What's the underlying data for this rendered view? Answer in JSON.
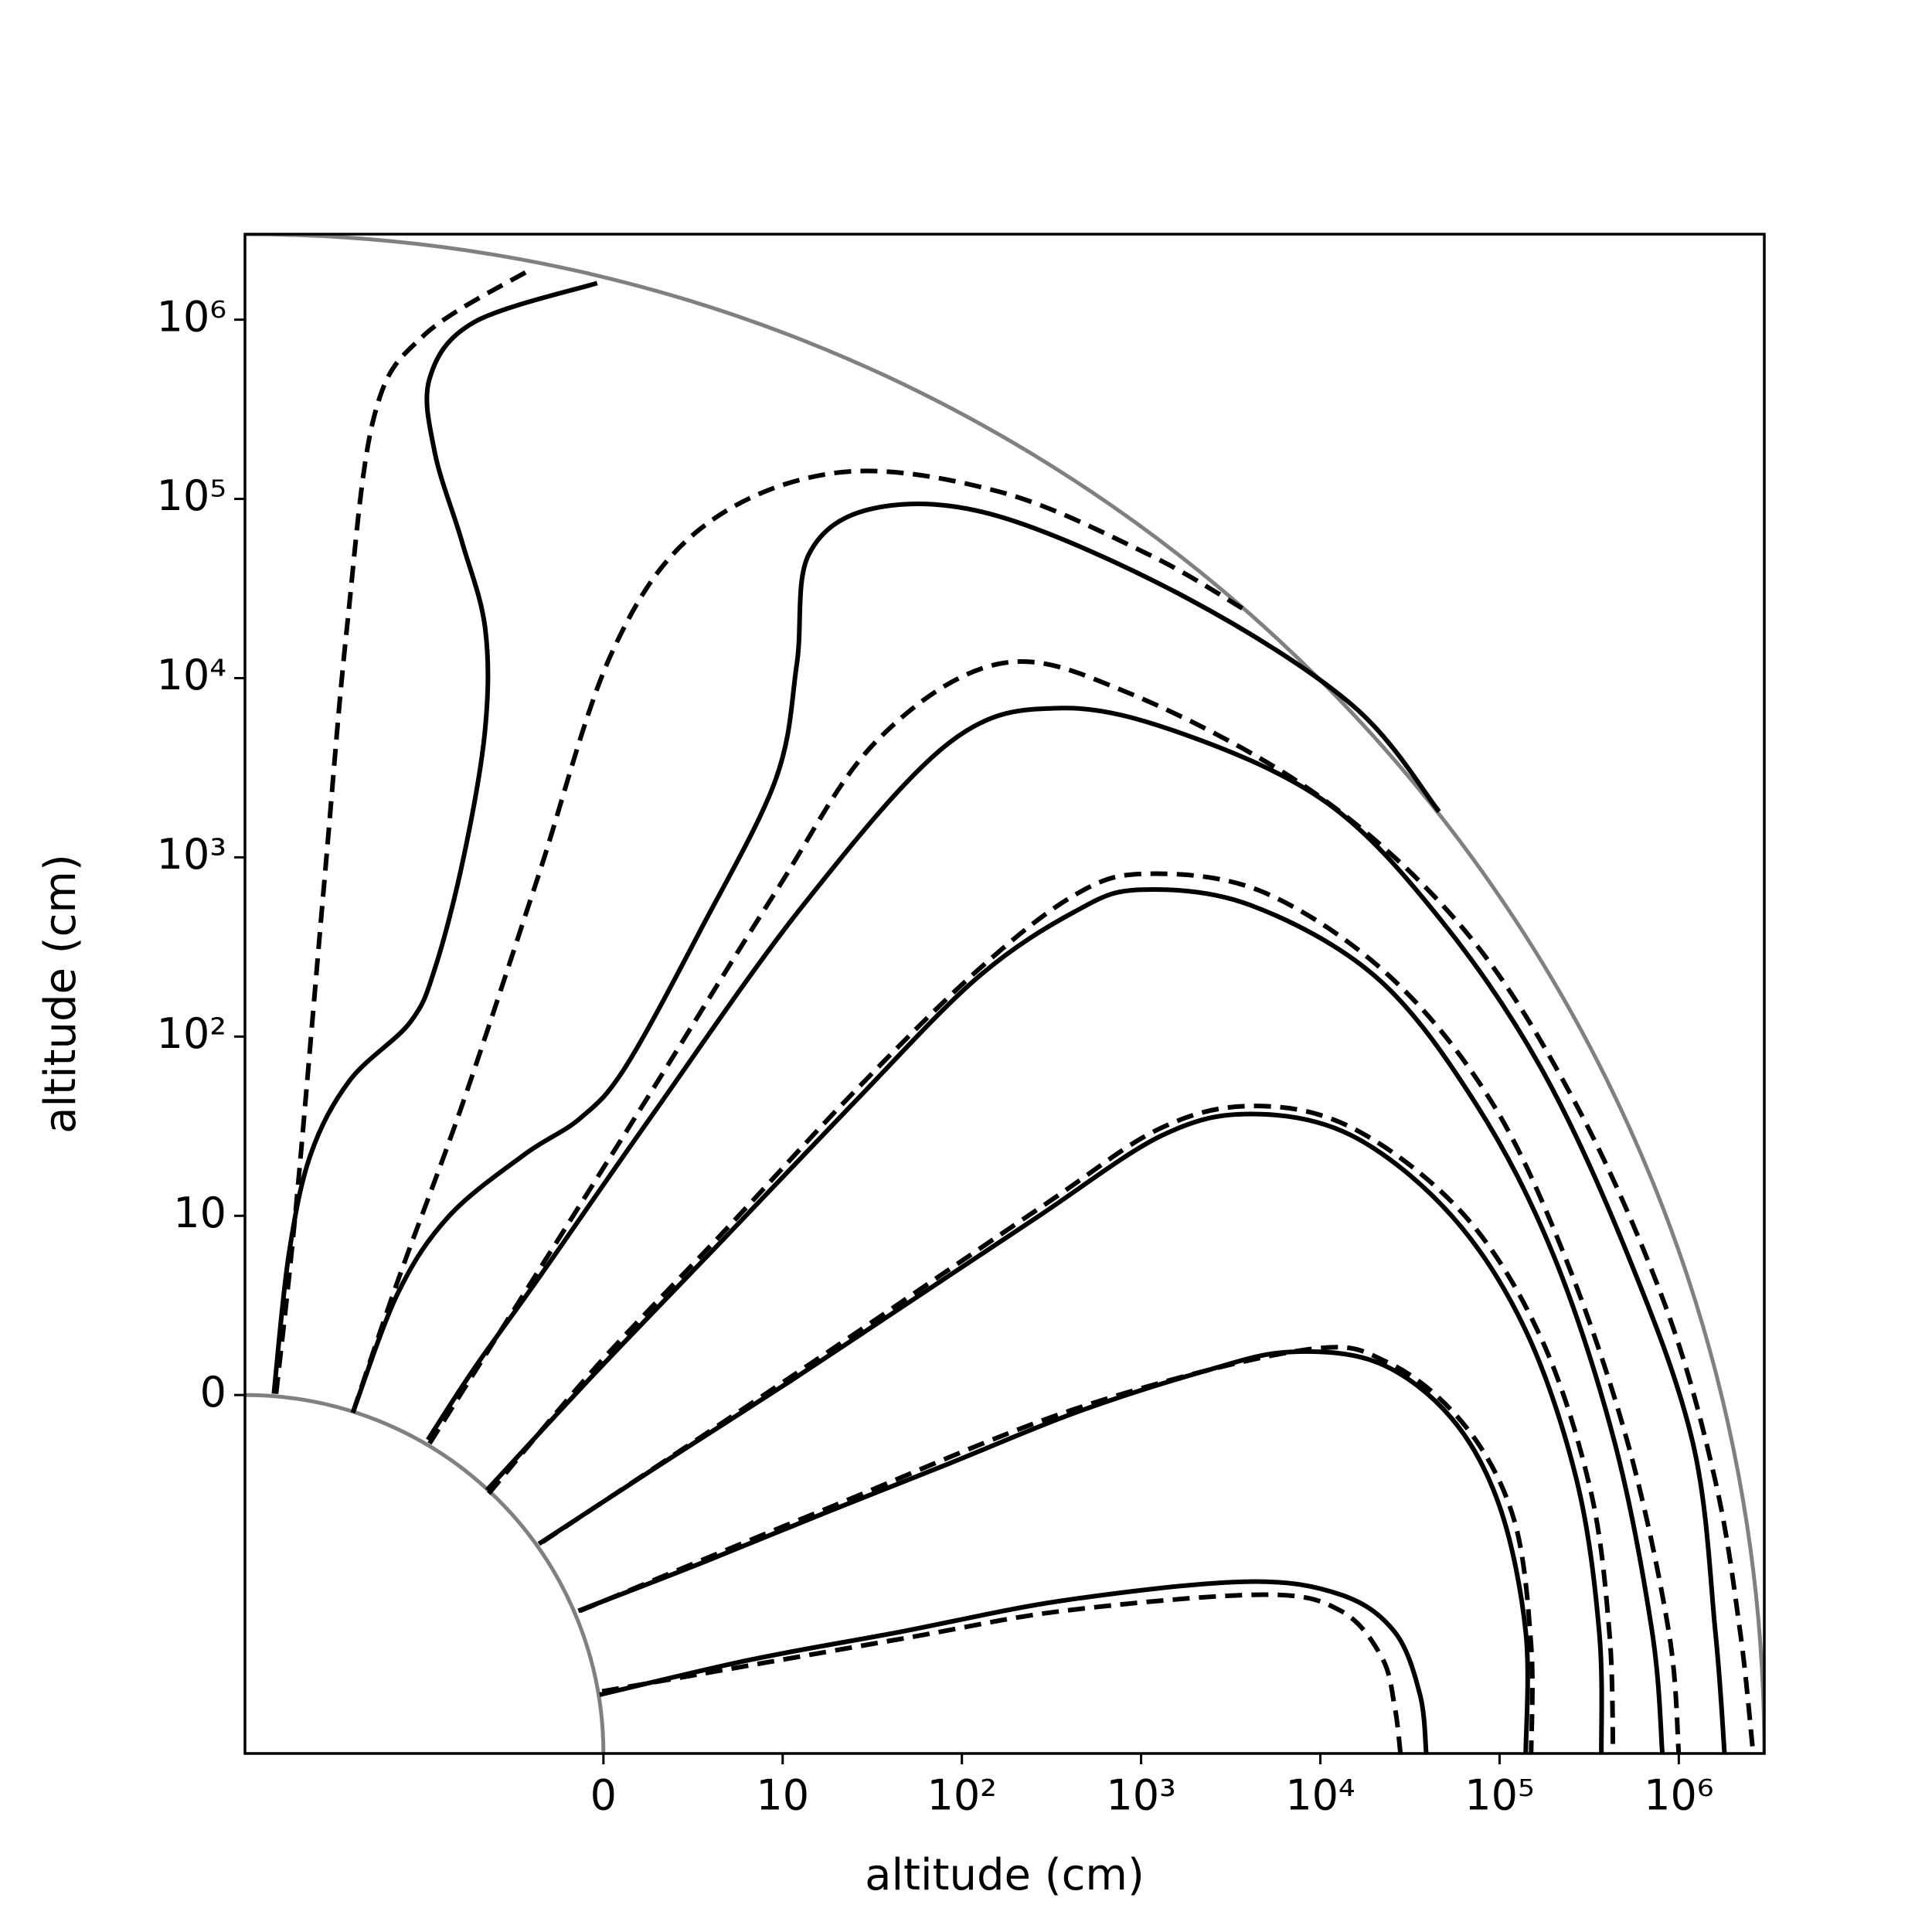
{
  "chart_data": {
    "type": "line",
    "xlabel": "altitude (cm)",
    "ylabel": "altitude (cm)",
    "xscale": "symlog",
    "yscale": "symlog",
    "linthresh": 10,
    "xlim": [
      -100,
      3000000
    ],
    "ylim": [
      -100,
      3000000
    ],
    "xticks": [
      0,
      10,
      {
        "value": 100,
        "label": "10²"
      },
      {
        "value": 1000,
        "label": "10³"
      },
      {
        "value": 10000,
        "label": "10⁴"
      },
      {
        "value": 100000,
        "label": "10⁵"
      },
      {
        "value": 1000000,
        "label": "10⁶"
      }
    ],
    "yticks": [
      0,
      10,
      {
        "value": 100,
        "label": "10²"
      },
      {
        "value": 1000,
        "label": "10³"
      },
      {
        "value": 10000,
        "label": "10⁴"
      },
      {
        "value": 100000,
        "label": "10⁵"
      },
      {
        "value": 1000000,
        "label": "10⁶"
      }
    ],
    "series": [
      {
        "color": "#000000",
        "linestyle": "solid",
        "x": [
          -69,
          -57,
          -43,
          -26,
          -12,
          -9.4,
          -7.8,
          -6.6,
          -6.6,
          -7.9,
          -9.4,
          -9.7,
          -7.2,
          -0.35
        ],
        "values": [
          0.07,
          7.8,
          22,
          57,
          120,
          240,
          1000,
          5200,
          19000,
          58000,
          180000,
          470000,
          970000,
          1600000
        ]
      },
      {
        "color": "#000000",
        "linestyle": "dashed",
        "x": [
          -67,
          -52,
          -36,
          -27,
          -19,
          -10,
          -4.1
        ],
        "values": [
          0.07,
          11,
          750,
          19000,
          290000,
          820000,
          1900000
        ]
      },
      {
        "color": "#000000",
        "linestyle": "solid",
        "x": [
          -25,
          -14,
          -8.6,
          -4.4,
          -1.3,
          1.2,
          5.4,
          9.6,
          12,
          14,
          33,
          160,
          1800,
          15000,
          46000
        ],
        "values": [
          -0.98,
          5.7,
          10,
          22,
          35,
          67,
          390,
          2700,
          12000,
          49000,
          89000,
          80000,
          28000,
          7100,
          1800
        ]
      },
      {
        "color": "#000000",
        "linestyle": "dashed",
        "x": [
          -25,
          -14,
          -7.9,
          -3.7,
          0.49,
          5.4,
          20,
          160,
          1100,
          3800
        ],
        "values": [
          -0.98,
          6.4,
          41,
          750,
          14000,
          68000,
          140000,
          110000,
          49000,
          24000
        ]
      },
      {
        "color": "#000000",
        "linestyle": "solid",
        "x": [
          -9.8,
          -7.2,
          -3.7,
          2.6,
          13,
          86,
          360,
          1800,
          11000,
          46000,
          170000,
          520000,
          1200000,
          1600000,
          1800000
        ],
        "values": [
          -2.5,
          1.5,
          6.4,
          35,
          540,
          4400,
          6800,
          4800,
          2000,
          460,
          67,
          7.8,
          -2.7,
          -21,
          -100
        ]
      },
      {
        "color": "#000000",
        "linestyle": "dashed",
        "x": [
          -9.7,
          -4.4,
          2.6,
          9.6,
          33,
          160,
          820,
          9200,
          64000,
          270000,
          840000,
          1600000,
          2200000,
          2600000
        ],
        "values": [
          -2.7,
          5.7,
          48,
          640,
          4400,
          12000,
          8400,
          2300,
          390,
          41,
          5.0,
          -4.8,
          -21,
          -100
        ]
      },
      {
        "color": "#000000",
        "linestyle": "solid",
        "x": [
          -6.5,
          -0.21,
          6.8,
          24,
          120,
          430,
          1000,
          4100,
          21000,
          75000,
          200000,
          440000,
          710000,
          810000
        ],
        "values": [
          -5.3,
          1.5,
          8.8,
          41,
          210,
          500,
          660,
          540,
          210,
          41,
          7.8,
          -2.7,
          -21,
          -100
        ]
      },
      {
        "color": "#000000",
        "linestyle": "dashed",
        "x": [
          -6.4,
          -0.21,
          6.8,
          24,
          120,
          430,
          1100,
          4800,
          24000,
          88000,
          230000,
          520000,
          880000,
          1000000
        ],
        "values": [
          -5.5,
          1.8,
          9.2,
          47,
          230,
          620,
          810,
          640,
          220,
          45,
          7.8,
          -2.7,
          -21,
          -100
        ]
      },
      {
        "color": "#000000",
        "linestyle": "solid",
        "x": [
          -3.6,
          3.3,
          11,
          53,
          270,
          1300,
          4100,
          15000,
          54000,
          140000,
          270000,
          360000,
          370000
        ],
        "values": [
          -8.3,
          -3.8,
          0.77,
          5.3,
          10,
          28,
          37,
          28,
          10,
          3.6,
          -4.8,
          -21,
          -100
        ]
      },
      {
        "color": "#000000",
        "linestyle": "dashed",
        "x": [
          -3.4,
          11,
          270,
          1300,
          4500,
          16000,
          64000,
          170000,
          320000,
          410000,
          430000
        ],
        "values": [
          -8.2,
          0.98,
          11,
          31,
          41,
          30,
          10,
          3.2,
          -5.2,
          -21,
          -100
        ]
      },
      {
        "color": "#000000",
        "linestyle": "solid",
        "x": [
          -1.4,
          5.4,
          17,
          86,
          430,
          2200,
          6700,
          21000,
          54000,
          100000,
          140000,
          140000
        ],
        "values": [
          -16,
          -9.4,
          -6.6,
          -3.8,
          -0.98,
          1.3,
          2.4,
          1.8,
          -1.3,
          -6.2,
          -21,
          -100
        ]
      },
      {
        "color": "#000000",
        "linestyle": "dashed",
        "x": [
          -1.3,
          17,
          430,
          7900,
          24000,
          64000,
          120000,
          150000,
          150000
        ],
        "values": [
          -16,
          -6.4,
          -0.77,
          2.5,
          1.8,
          -1.7,
          -6.9,
          -25,
          -100
        ]
      },
      {
        "color": "#000000",
        "linestyle": "solid",
        "x": [
          -0.21,
          8.2,
          45,
          370,
          3800,
          13000,
          26000,
          36000,
          39000
        ],
        "values": [
          -47,
          -30,
          -21,
          -14,
          -11,
          -13,
          -21,
          -47,
          -100
        ]
      },
      {
        "color": "#000000",
        "linestyle": "dashed",
        "x": [
          -0.07,
          45,
          370,
          4800,
          13000,
          22000,
          26000,
          28000
        ],
        "values": [
          -45,
          -23,
          -16,
          -13,
          -16,
          -29,
          -55,
          -100
        ]
      }
    ]
  }
}
